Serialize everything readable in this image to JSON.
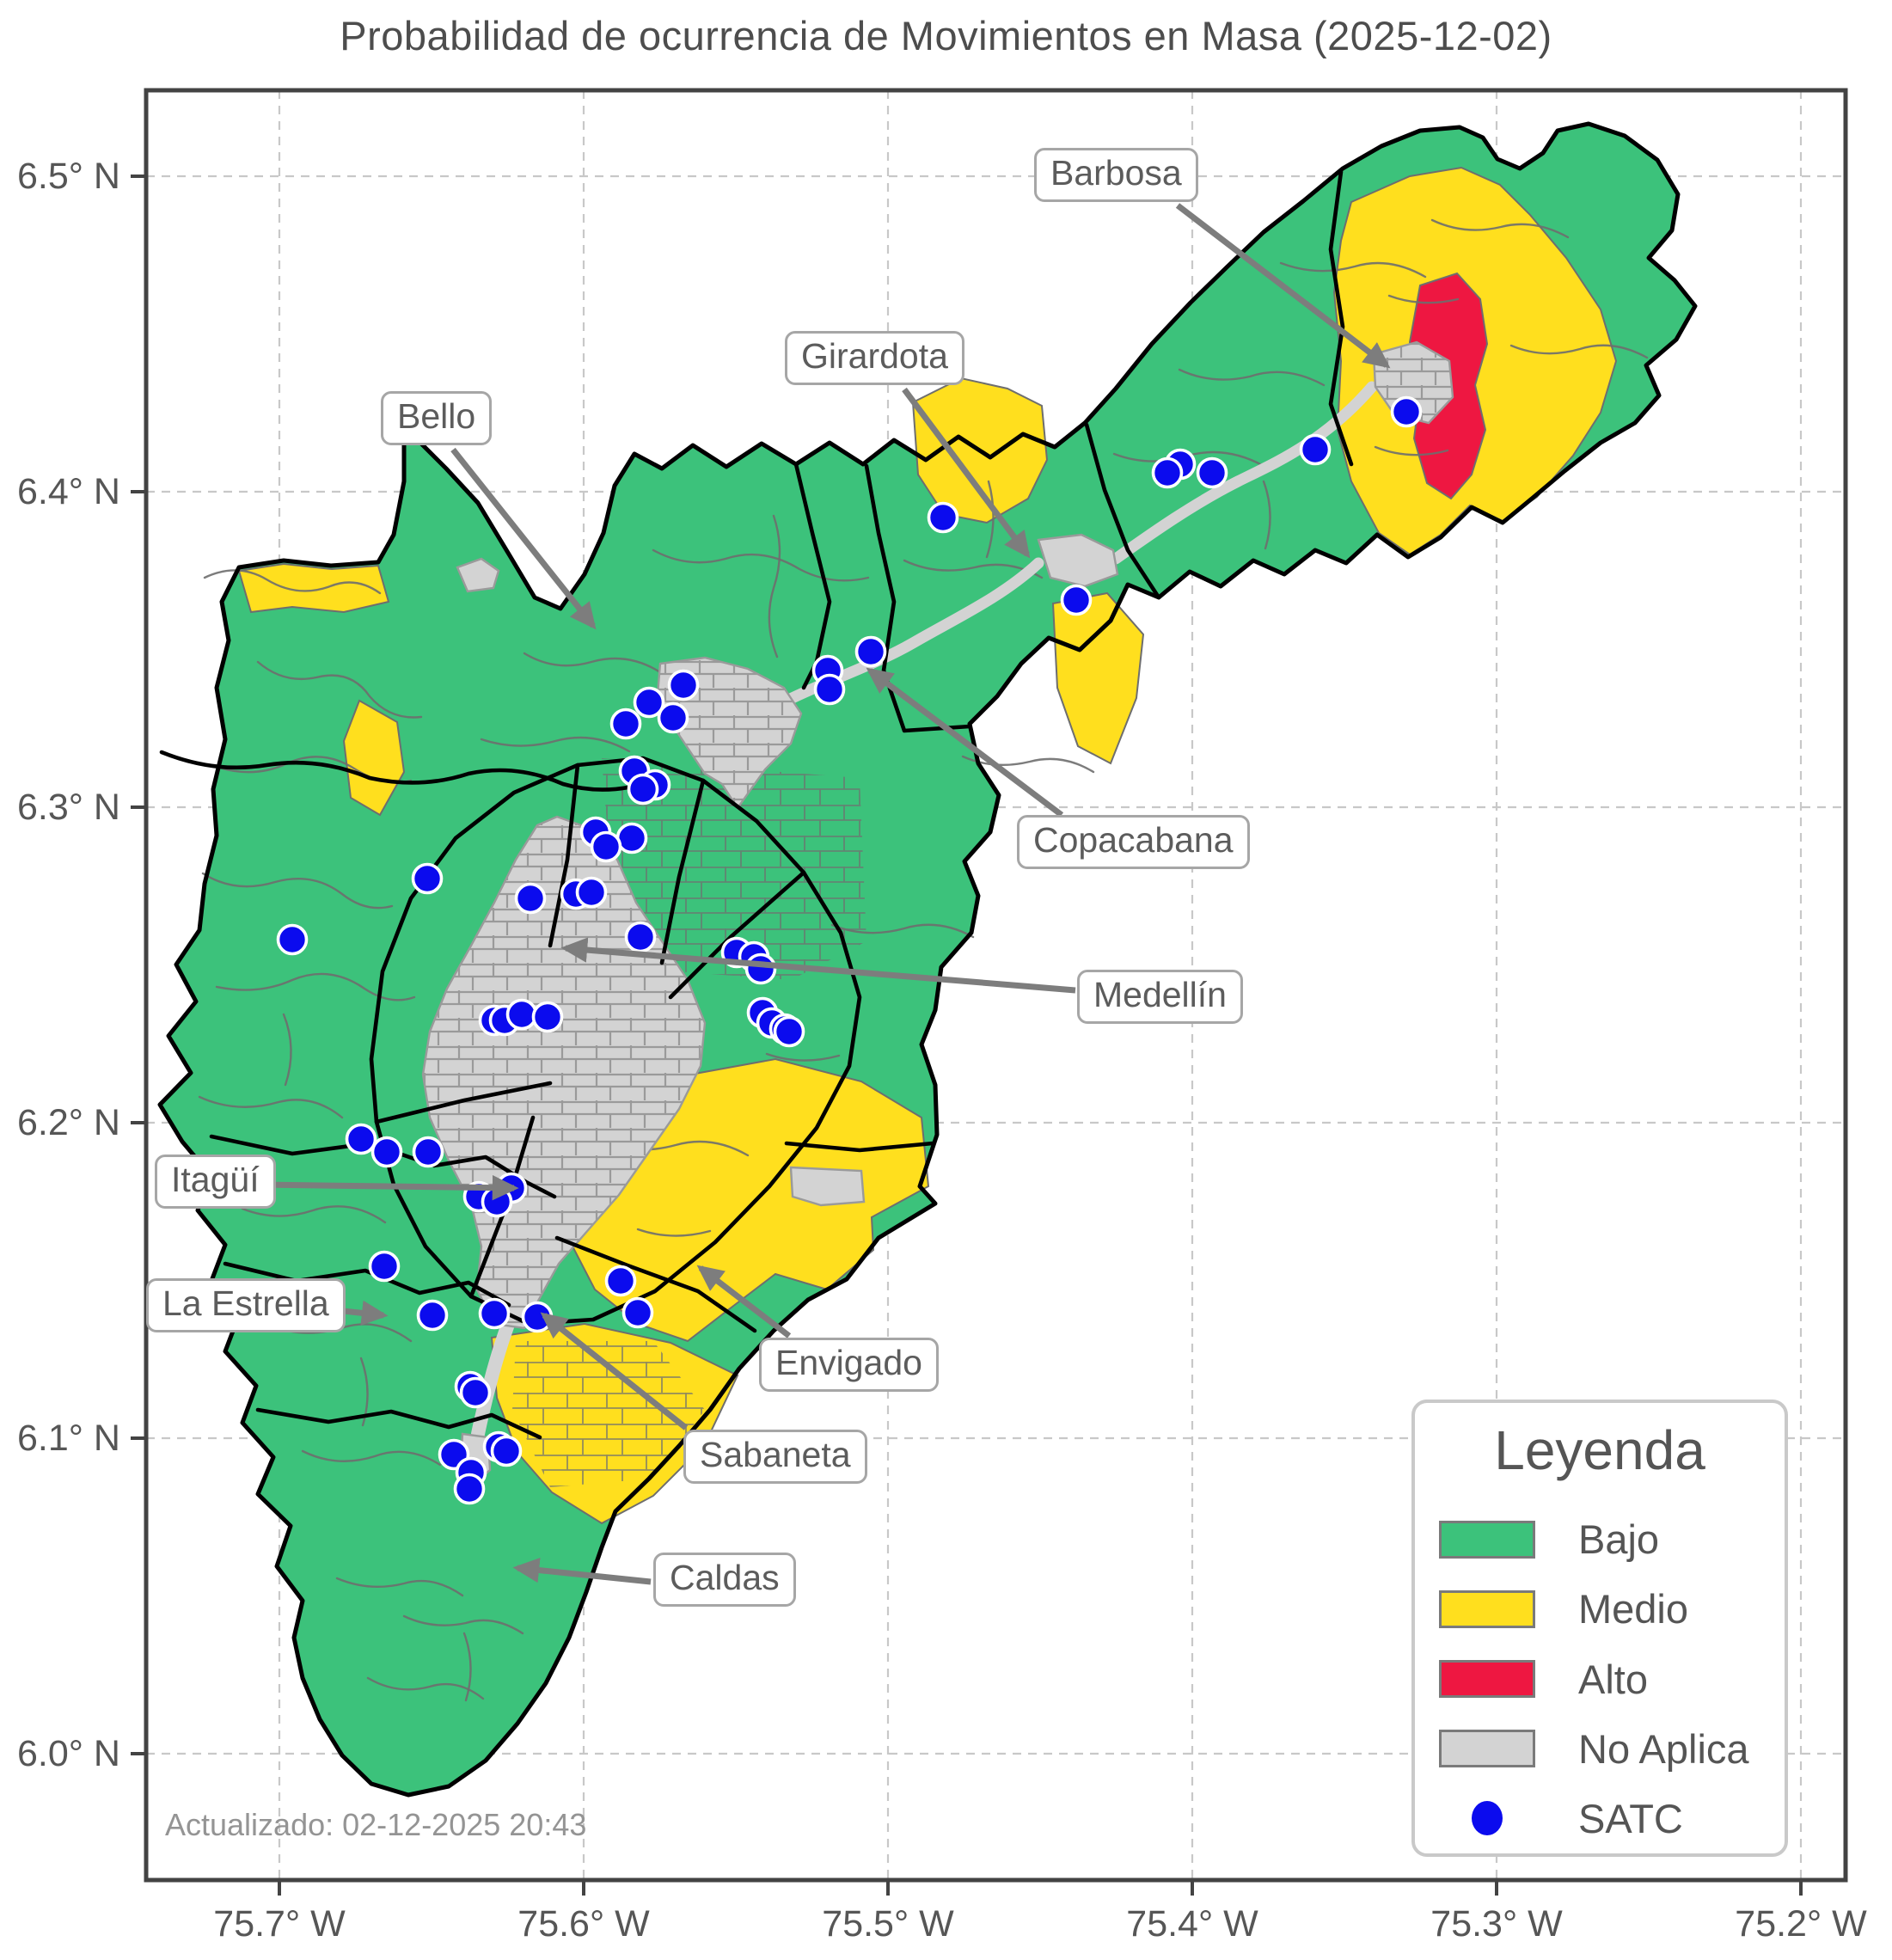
{
  "title": "Probabilidad de ocurrencia de Movimientos en Masa (2025-12-02)",
  "updated": "Actualizado: 02-12-2025 20:43",
  "axes": {
    "x_ticks": [
      "75.7° W",
      "75.6° W",
      "75.5° W",
      "75.4° W",
      "75.3° W",
      "75.2° W"
    ],
    "y_ticks": [
      "6.5° N",
      "6.4° N",
      "6.3° N",
      "6.2° N",
      "6.1° N",
      "6.0° N"
    ]
  },
  "legend": {
    "title": "Leyenda",
    "items": [
      {
        "label": "Bajo",
        "color": "#3cc27b",
        "type": "patch"
      },
      {
        "label": "Medio",
        "color": "#ffdf1e",
        "type": "patch"
      },
      {
        "label": "Alto",
        "color": "#ee1741",
        "type": "patch"
      },
      {
        "label": "No Aplica",
        "color": "#d3d3d3",
        "type": "patch"
      },
      {
        "label": "SATC",
        "color": "#0b0bee",
        "type": "dot"
      }
    ]
  },
  "annotations": [
    {
      "label": "Barbosa"
    },
    {
      "label": "Girardota"
    },
    {
      "label": "Bello"
    },
    {
      "label": "Copacabana"
    },
    {
      "label": "Medellín"
    },
    {
      "label": "Itagüí"
    },
    {
      "label": "La Estrella"
    },
    {
      "label": "Envigado"
    },
    {
      "label": "Sabaneta"
    },
    {
      "label": "Caldas"
    }
  ],
  "map": {
    "colors": {
      "bajo": "#3cc27b",
      "medio": "#ffdf1e",
      "alto": "#ee1741",
      "no_aplica": "#d3d3d3",
      "satc": "#0b0bee"
    },
    "satc_points": [
      [
        1636,
        479
      ],
      [
        1530,
        523
      ],
      [
        1410,
        550
      ],
      [
        1373,
        540
      ],
      [
        1358,
        550
      ],
      [
        1252,
        698
      ],
      [
        1097,
        602
      ],
      [
        1013,
        758
      ],
      [
        963,
        780
      ],
      [
        965,
        802
      ],
      [
        795,
        797
      ],
      [
        755,
        817
      ],
      [
        783,
        835
      ],
      [
        728,
        842
      ],
      [
        738,
        897
      ],
      [
        762,
        913
      ],
      [
        748,
        918
      ],
      [
        693,
        968
      ],
      [
        735,
        975
      ],
      [
        705,
        985
      ],
      [
        497,
        1022
      ],
      [
        617,
        1045
      ],
      [
        670,
        1040
      ],
      [
        688,
        1038
      ],
      [
        745,
        1090
      ],
      [
        857,
        1108
      ],
      [
        877,
        1113
      ],
      [
        885,
        1127
      ],
      [
        340,
        1093
      ],
      [
        575,
        1187
      ],
      [
        587,
        1187
      ],
      [
        607,
        1180
      ],
      [
        637,
        1183
      ],
      [
        887,
        1178
      ],
      [
        898,
        1190
      ],
      [
        913,
        1197
      ],
      [
        918,
        1200
      ],
      [
        498,
        1340
      ],
      [
        450,
        1340
      ],
      [
        420,
        1325
      ],
      [
        595,
        1382
      ],
      [
        557,
        1392
      ],
      [
        578,
        1398
      ],
      [
        447,
        1473
      ],
      [
        722,
        1490
      ],
      [
        742,
        1527
      ],
      [
        503,
        1530
      ],
      [
        575,
        1528
      ],
      [
        625,
        1532
      ],
      [
        547,
        1613
      ],
      [
        553,
        1620
      ],
      [
        580,
        1683
      ],
      [
        589,
        1688
      ],
      [
        528,
        1692
      ],
      [
        548,
        1713
      ],
      [
        546,
        1732
      ]
    ]
  }
}
